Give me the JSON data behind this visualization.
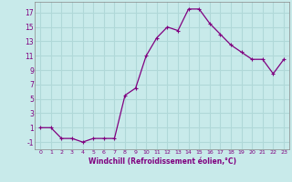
{
  "x": [
    0,
    1,
    2,
    3,
    4,
    5,
    6,
    7,
    8,
    9,
    10,
    11,
    12,
    13,
    14,
    15,
    16,
    17,
    18,
    19,
    20,
    21,
    22,
    23
  ],
  "y": [
    1,
    1,
    -0.5,
    -0.5,
    -1,
    -0.5,
    -0.5,
    -0.5,
    5.5,
    6.5,
    11,
    13.5,
    15,
    14.5,
    17.5,
    17.5,
    15.5,
    14,
    12.5,
    11.5,
    10.5,
    10.5,
    8.5,
    10.5
  ],
  "line_color": "#800080",
  "marker": "+",
  "marker_color": "#800080",
  "bg_color": "#c8eaea",
  "grid_color": "#b0d8d8",
  "xlabel": "Windchill (Refroidissement éolien,°C)",
  "xlabel_color": "#800080",
  "tick_color": "#800080",
  "ylabel_ticks": [
    -1,
    1,
    3,
    5,
    7,
    9,
    11,
    13,
    15,
    17
  ],
  "xlim": [
    -0.5,
    23.5
  ],
  "ylim": [
    -2,
    18.5
  ],
  "xtick_labels": [
    "0",
    "1",
    "2",
    "3",
    "4",
    "5",
    "6",
    "7",
    "8",
    "9",
    "10",
    "11",
    "12",
    "13",
    "14",
    "15",
    "16",
    "17",
    "18",
    "19",
    "20",
    "21",
    "22",
    "23"
  ],
  "figure_bg": "#c8eaea"
}
